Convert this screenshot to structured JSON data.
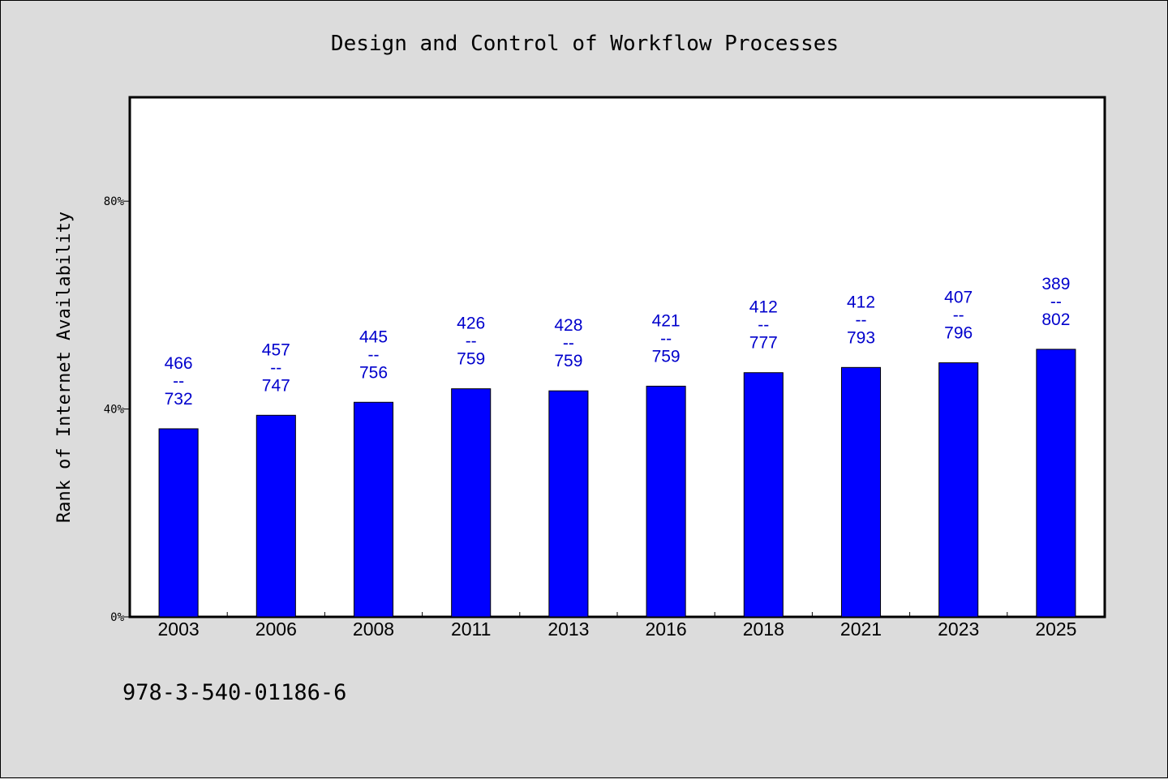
{
  "chart_data": {
    "type": "bar",
    "title": "Design and Control of Workflow Processes",
    "ylabel": "Rank of Internet Availability",
    "xlabel": "",
    "ylim": [
      0,
      100
    ],
    "yticks": [
      0,
      40,
      80
    ],
    "ytick_labels": [
      "0%",
      "40%",
      "80%"
    ],
    "categories": [
      "2003",
      "2006",
      "2008",
      "2011",
      "2013",
      "2016",
      "2018",
      "2021",
      "2023",
      "2025"
    ],
    "values": [
      36.2,
      38.8,
      41.3,
      43.9,
      43.5,
      44.4,
      47.0,
      48.0,
      48.9,
      51.5
    ],
    "label_top": [
      "466",
      "457",
      "445",
      "426",
      "428",
      "421",
      "412",
      "412",
      "407",
      "389"
    ],
    "label_bottom": [
      "732",
      "747",
      "756",
      "759",
      "759",
      "759",
      "777",
      "793",
      "796",
      "802"
    ],
    "label_separator": "--",
    "bar_color": "#0000ff",
    "label_color": "#0000cc",
    "grid": false
  },
  "footer": {
    "text": "978-3-540-01186-6"
  }
}
